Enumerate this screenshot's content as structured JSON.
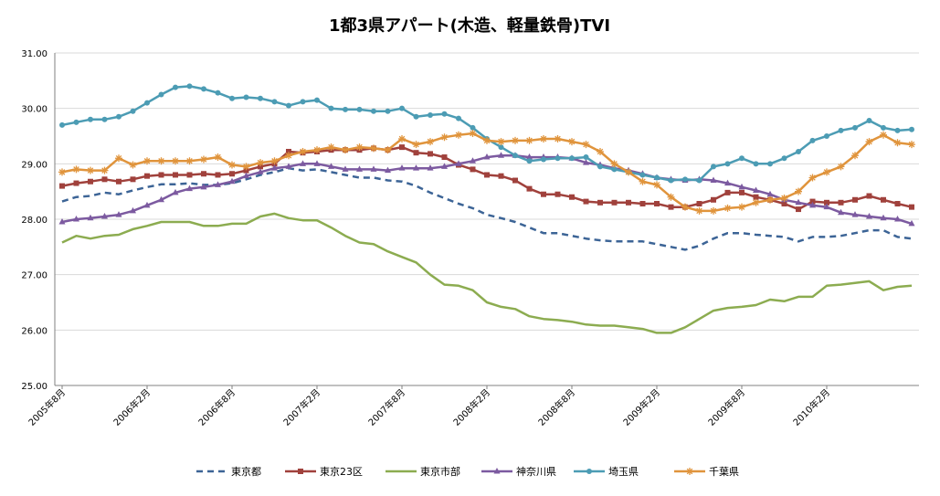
{
  "chart_data": {
    "type": "line",
    "title": "1都3県アパート(木造、軽量鉄骨)TVI",
    "xlabel": "",
    "ylabel": "",
    "ylim": [
      25.0,
      31.0
    ],
    "yticks": [
      "25.00",
      "26.00",
      "27.00",
      "28.00",
      "29.00",
      "30.00",
      "31.00"
    ],
    "x_start": "2005-08",
    "x_end": "2010-08",
    "xtick_labels": [
      {
        "month_index": 0,
        "label": "2005年8月"
      },
      {
        "month_index": 6,
        "label": "2006年2月"
      },
      {
        "month_index": 12,
        "label": "2006年8月"
      },
      {
        "month_index": 18,
        "label": "2007年2月"
      },
      {
        "month_index": 24,
        "label": "2007年8月"
      },
      {
        "month_index": 30,
        "label": "2008年2月"
      },
      {
        "month_index": 36,
        "label": "2008年8月"
      },
      {
        "month_index": 42,
        "label": "2009年2月"
      },
      {
        "month_index": 48,
        "label": "2009年8月"
      },
      {
        "month_index": 54,
        "label": "2010年2月"
      }
    ],
    "grid": true,
    "legend_position": "bottom",
    "series": [
      {
        "name": "東京都",
        "color": "#3c6496",
        "style": "dashed",
        "marker": "none",
        "values": [
          28.32,
          28.4,
          28.42,
          28.48,
          28.45,
          28.52,
          28.58,
          28.63,
          28.63,
          28.65,
          28.62,
          28.62,
          28.65,
          28.72,
          28.8,
          28.85,
          28.92,
          28.88,
          28.9,
          28.85,
          28.8,
          28.75,
          28.75,
          28.7,
          28.68,
          28.6,
          28.48,
          28.38,
          28.28,
          28.2,
          28.08,
          28.02,
          27.95,
          27.85,
          27.75,
          27.75,
          27.7,
          27.65,
          27.62,
          27.6,
          27.6,
          27.6,
          27.55,
          27.5,
          27.45,
          27.52,
          27.65,
          27.75,
          27.75,
          27.72,
          27.7,
          27.68,
          27.6,
          27.68,
          27.68,
          27.7,
          27.75,
          27.8,
          27.8,
          27.68,
          27.65
        ]
      },
      {
        "name": "東京23区",
        "color": "#a0413c",
        "style": "solid",
        "marker": "square",
        "values": [
          28.6,
          28.65,
          28.68,
          28.72,
          28.68,
          28.72,
          28.78,
          28.8,
          28.8,
          28.8,
          28.82,
          28.8,
          28.82,
          28.88,
          28.95,
          29.0,
          29.22,
          29.2,
          29.22,
          29.25,
          29.25,
          29.25,
          29.28,
          29.25,
          29.3,
          29.2,
          29.18,
          29.12,
          28.98,
          28.9,
          28.8,
          28.78,
          28.7,
          28.55,
          28.45,
          28.45,
          28.4,
          28.32,
          28.3,
          28.3,
          28.3,
          28.28,
          28.28,
          28.22,
          28.22,
          28.28,
          28.35,
          28.48,
          28.48,
          28.4,
          28.35,
          28.28,
          28.18,
          28.32,
          28.3,
          28.3,
          28.35,
          28.42,
          28.35,
          28.28,
          28.22
        ]
      },
      {
        "name": "東京市部",
        "color": "#8cac50",
        "style": "solid",
        "marker": "none",
        "values": [
          27.58,
          27.7,
          27.65,
          27.7,
          27.72,
          27.82,
          27.88,
          27.95,
          27.95,
          27.95,
          27.88,
          27.88,
          27.92,
          27.92,
          28.05,
          28.1,
          28.02,
          27.98,
          27.98,
          27.85,
          27.7,
          27.58,
          27.55,
          27.42,
          27.32,
          27.22,
          27.0,
          26.82,
          26.8,
          26.72,
          26.5,
          26.42,
          26.38,
          26.25,
          26.2,
          26.18,
          26.15,
          26.1,
          26.08,
          26.08,
          26.05,
          26.02,
          25.95,
          25.95,
          26.05,
          26.2,
          26.35,
          26.4,
          26.42,
          26.45,
          26.55,
          26.52,
          26.6,
          26.6,
          26.8,
          26.82,
          26.85,
          26.88,
          26.72,
          26.78,
          26.8
        ]
      },
      {
        "name": "神奈川県",
        "color": "#7c5aa0",
        "style": "solid",
        "marker": "triangle",
        "values": [
          27.95,
          28.0,
          28.02,
          28.05,
          28.08,
          28.15,
          28.25,
          28.35,
          28.48,
          28.55,
          28.58,
          28.62,
          28.68,
          28.78,
          28.85,
          28.92,
          28.95,
          29.0,
          29.0,
          28.95,
          28.9,
          28.9,
          28.9,
          28.88,
          28.92,
          28.92,
          28.92,
          28.95,
          29.0,
          29.05,
          29.12,
          29.15,
          29.15,
          29.12,
          29.12,
          29.12,
          29.1,
          29.02,
          28.98,
          28.92,
          28.88,
          28.82,
          28.75,
          28.72,
          28.7,
          28.72,
          28.7,
          28.65,
          28.58,
          28.52,
          28.45,
          28.35,
          28.3,
          28.25,
          28.22,
          28.12,
          28.08,
          28.05,
          28.02,
          28.0,
          27.92
        ]
      },
      {
        "name": "埼玉県",
        "color": "#4c9cb4",
        "style": "solid",
        "marker": "circle",
        "values": [
          29.7,
          29.75,
          29.8,
          29.8,
          29.85,
          29.95,
          30.1,
          30.25,
          30.38,
          30.4,
          30.35,
          30.28,
          30.18,
          30.2,
          30.18,
          30.12,
          30.05,
          30.12,
          30.15,
          30.0,
          29.98,
          29.98,
          29.95,
          29.95,
          30.0,
          29.85,
          29.88,
          29.9,
          29.82,
          29.65,
          29.45,
          29.3,
          29.15,
          29.05,
          29.08,
          29.1,
          29.1,
          29.12,
          28.95,
          28.9,
          28.85,
          28.8,
          28.75,
          28.7,
          28.72,
          28.7,
          28.95,
          29.0,
          29.1,
          29.0,
          29.0,
          29.1,
          29.22,
          29.42,
          29.5,
          29.6,
          29.65,
          29.78,
          29.65,
          29.6,
          29.62
        ]
      },
      {
        "name": "千葉県",
        "color": "#e0943c",
        "style": "solid",
        "marker": "star",
        "values": [
          28.85,
          28.9,
          28.88,
          28.88,
          29.1,
          28.98,
          29.05,
          29.05,
          29.05,
          29.05,
          29.08,
          29.12,
          28.98,
          28.95,
          29.02,
          29.05,
          29.15,
          29.22,
          29.25,
          29.3,
          29.25,
          29.3,
          29.28,
          29.25,
          29.45,
          29.35,
          29.4,
          29.48,
          29.52,
          29.55,
          29.42,
          29.4,
          29.42,
          29.42,
          29.45,
          29.45,
          29.4,
          29.35,
          29.22,
          29.0,
          28.85,
          28.68,
          28.62,
          28.4,
          28.22,
          28.15,
          28.15,
          28.2,
          28.22,
          28.3,
          28.35,
          28.38,
          28.5,
          28.75,
          28.85,
          28.95,
          29.15,
          29.4,
          29.52,
          29.38,
          29.35
        ]
      }
    ]
  }
}
